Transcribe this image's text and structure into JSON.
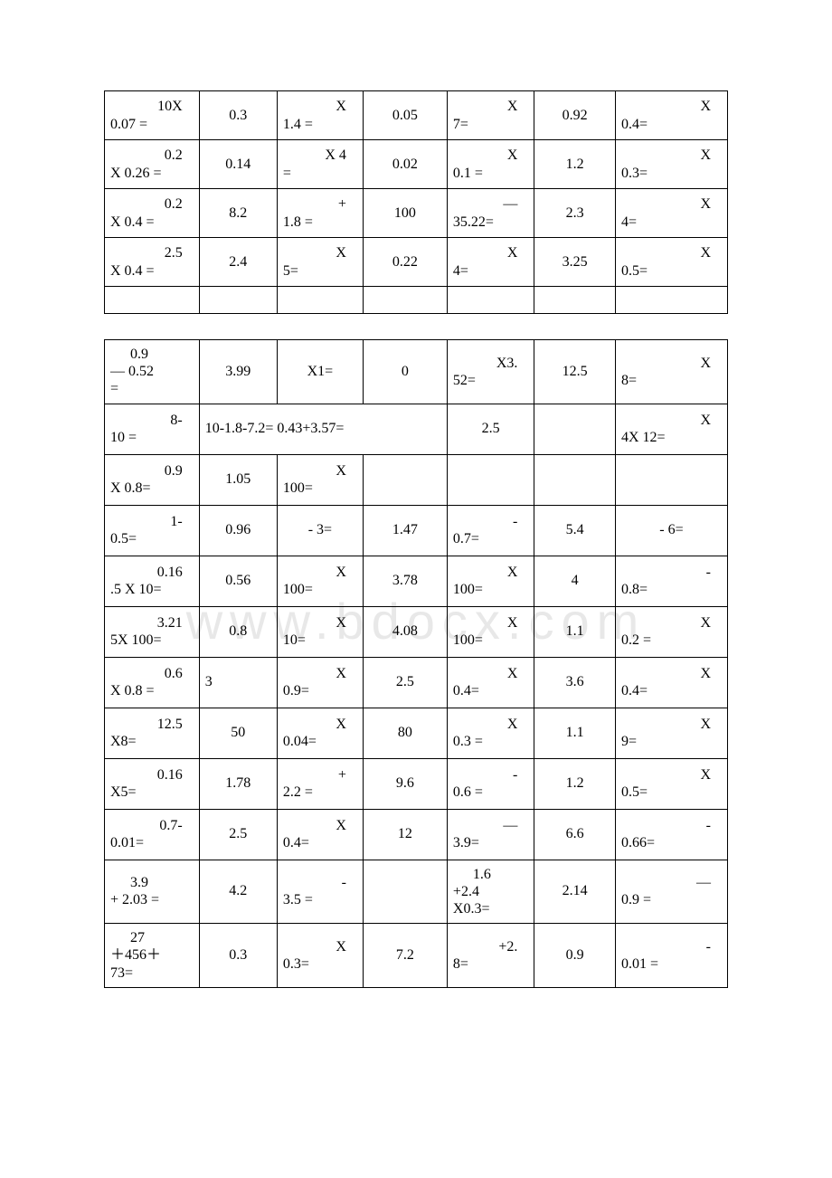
{
  "watermark": "www.bdocx.com",
  "table1": {
    "columns": 7,
    "rows": [
      [
        {
          "sup": "10X",
          "sub": "0.07 ="
        },
        {
          "c": "0.3"
        },
        {
          "sup": "X",
          "sub": "1.4 ="
        },
        {
          "c": "0.05"
        },
        {
          "sup": "X",
          "sub": "7="
        },
        {
          "c": "0.92"
        },
        {
          "sup": "X",
          "sub": "0.4="
        }
      ],
      [
        {
          "sup": "0.2",
          "sub": "X 0.26 ="
        },
        {
          "c": "0.14"
        },
        {
          "sup": "X 4",
          "sub": "="
        },
        {
          "c": "0.02"
        },
        {
          "sup": "X",
          "sub": "0.1 ="
        },
        {
          "c": "1.2"
        },
        {
          "sup": "X",
          "sub": "0.3="
        }
      ],
      [
        {
          "sup": "0.2",
          "sub": "X 0.4 ="
        },
        {
          "c": "8.2"
        },
        {
          "sup": "+",
          "sub": "1.8 ="
        },
        {
          "c": "100"
        },
        {
          "sup": "—",
          "sub": "35.22="
        },
        {
          "c": "2.3"
        },
        {
          "sup": "X",
          "sub": "4="
        }
      ],
      [
        {
          "sup": "2.5",
          "sub": "X 0.4 ="
        },
        {
          "c": "2.4"
        },
        {
          "sup": "X",
          "sub": "5="
        },
        {
          "c": "0.22"
        },
        {
          "sup": "X",
          "sub": "4="
        },
        {
          "c": "3.25"
        },
        {
          "sup": "X",
          "sub": "0.5="
        }
      ],
      [
        "",
        "",
        "",
        "",
        "",
        "",
        ""
      ]
    ]
  },
  "table2": {
    "columns": 7,
    "rows": [
      [
        {
          "ind": "0.9",
          "l2": "— 0.52",
          "l3": "="
        },
        {
          "c": "3.99"
        },
        {
          "c": "X1="
        },
        {
          "c": "0"
        },
        {
          "sup": "X3.",
          "sub": "52="
        },
        {
          "c": "12.5"
        },
        {
          "sup": "X",
          "sub": "8="
        }
      ],
      [
        {
          "sup": "8-",
          "sub": "10 ="
        },
        {
          "span": 3,
          "l": "10-1.8-7.2= 0.43+3.57="
        },
        {
          "c": "2.5"
        },
        {
          "c": ""
        },
        {
          "sup": "X",
          "sub": "4X 12="
        }
      ],
      [
        {
          "sup": "0.9",
          "sub": "X 0.8="
        },
        {
          "c": "1.05"
        },
        {
          "sup": "X",
          "sub": "100="
        },
        {
          "c": ""
        },
        {
          "c": ""
        },
        {
          "c": ""
        },
        {
          "c": ""
        }
      ],
      [
        {
          "sup": "1-",
          "sub": "0.5="
        },
        {
          "c": "0.96"
        },
        {
          "c": "- 3="
        },
        {
          "c": "1.47"
        },
        {
          "sup": "-",
          "sub": "0.7="
        },
        {
          "c": "5.4"
        },
        {
          "c": "- 6="
        }
      ],
      [
        {
          "sup": "0.16",
          "sub": ".5 X 10="
        },
        {
          "c": "0.56"
        },
        {
          "sup": "X",
          "sub": "100="
        },
        {
          "c": "3.78"
        },
        {
          "sup": "X",
          "sub": "100="
        },
        {
          "c": "4"
        },
        {
          "sup": "-",
          "sub": "0.8="
        }
      ],
      [
        {
          "sup": "3.21",
          "sub": "5X 100="
        },
        {
          "c": "0.8"
        },
        {
          "sup": "X",
          "sub": "10="
        },
        {
          "c": "4.08"
        },
        {
          "sup": "X",
          "sub": "100="
        },
        {
          "c": "1.1"
        },
        {
          "sup": "X",
          "sub": "0.2 ="
        }
      ],
      [
        {
          "sup": "0.6",
          "sub": "X 0.8 ="
        },
        {
          "l": "3"
        },
        {
          "sup": "X",
          "sub": "0.9="
        },
        {
          "c": "2.5"
        },
        {
          "sup": "X",
          "sub": "0.4="
        },
        {
          "c": "3.6"
        },
        {
          "sup": "X",
          "sub": "0.4="
        }
      ],
      [
        {
          "sup": "12.5",
          "sub": "X8="
        },
        {
          "c": "50"
        },
        {
          "sup": "X",
          "sub": "0.04="
        },
        {
          "c": "80"
        },
        {
          "sup": "X",
          "sub": "0.3 ="
        },
        {
          "c": "1.1"
        },
        {
          "sup": "X",
          "sub": "9="
        }
      ],
      [
        {
          "sup": "0.16",
          "sub": "X5="
        },
        {
          "c": "1.78"
        },
        {
          "sup": "+",
          "sub": "2.2 ="
        },
        {
          "c": "9.6"
        },
        {
          "sup": "-",
          "sub": "0.6 ="
        },
        {
          "c": "1.2"
        },
        {
          "sup": "X",
          "sub": "0.5="
        }
      ],
      [
        {
          "sup": "0.7-",
          "sub": "0.01="
        },
        {
          "c": "2.5"
        },
        {
          "sup": "X",
          "sub": "0.4="
        },
        {
          "c": "12"
        },
        {
          "sup": "—",
          "sub": "3.9="
        },
        {
          "c": "6.6"
        },
        {
          "sup": "-",
          "sub": "0.66="
        }
      ],
      [
        {
          "ind": "3.9",
          "l2": "+ 2.03 ="
        },
        {
          "c": "4.2"
        },
        {
          "sup": "-",
          "sub": "3.5 ="
        },
        {
          "c": ""
        },
        {
          "ind": "1.6",
          "l2": "+2.4",
          "l3": "X0.3="
        },
        {
          "c": "2.14"
        },
        {
          "sup": "—",
          "sub": "0.9 ="
        }
      ],
      [
        {
          "ind": "27",
          "l2": "＋456＋",
          "l3": "73="
        },
        {
          "c": "0.3"
        },
        {
          "sup": "X",
          "sub": "0.3="
        },
        {
          "c": "7.2"
        },
        {
          "sup": "+2.",
          "sub": "8="
        },
        {
          "c": "0.9"
        },
        {
          "sup": "-",
          "sub": "0.01 ="
        }
      ]
    ]
  },
  "col_widths": [
    "15.2%",
    "12.5%",
    "13.8%",
    "13.5%",
    "14%",
    "13%",
    "18%"
  ]
}
